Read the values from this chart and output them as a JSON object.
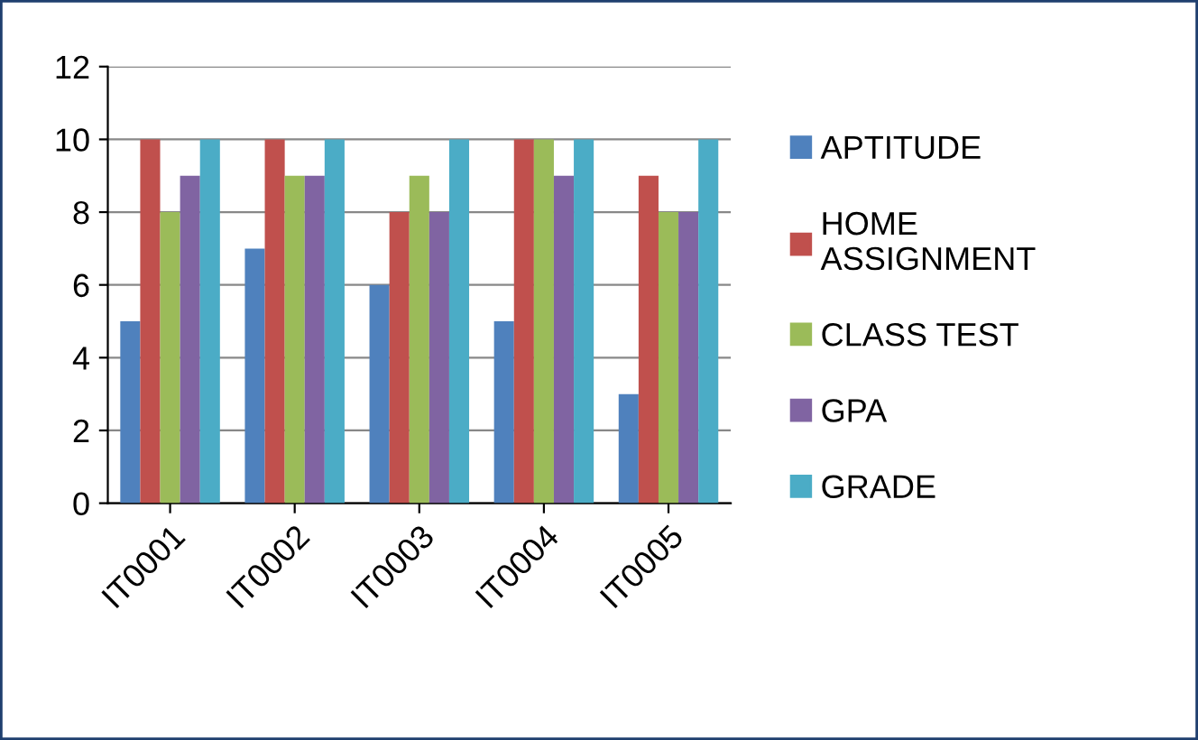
{
  "chart_data": {
    "type": "bar",
    "categories": [
      "IT0001",
      "IT0002",
      "IT0003",
      "IT0004",
      "IT0005"
    ],
    "series": [
      {
        "name": "APTITUDE",
        "color": "#4f81bd",
        "values": [
          5,
          7,
          6,
          5,
          3
        ]
      },
      {
        "name": "HOME ASSIGNMENT",
        "color": "#c0504d",
        "values": [
          10,
          10,
          8,
          10,
          9
        ]
      },
      {
        "name": "CLASS TEST",
        "color": "#9bbb59",
        "values": [
          8,
          9,
          9,
          10,
          8
        ]
      },
      {
        "name": "GPA",
        "color": "#8064a2",
        "values": [
          9,
          9,
          8,
          9,
          8
        ]
      },
      {
        "name": "GRADE",
        "color": "#4bacc6",
        "values": [
          10,
          10,
          10,
          10,
          10
        ]
      }
    ],
    "ylim": [
      0,
      12
    ],
    "yticks": [
      0,
      2,
      4,
      6,
      8,
      10,
      12
    ],
    "grid": "y",
    "legend": "right"
  }
}
